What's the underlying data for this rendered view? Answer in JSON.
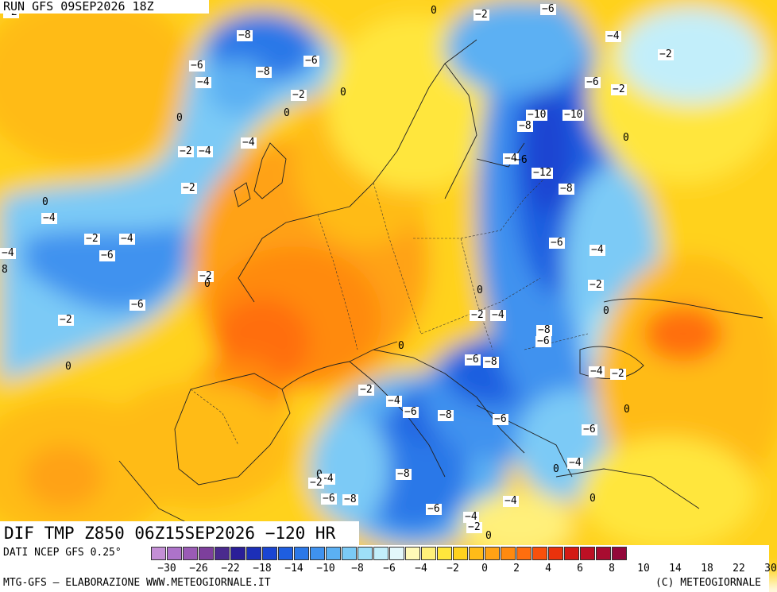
{
  "header": {
    "run_title": "RUN GFS 09SEP2026 18Z"
  },
  "panel": {
    "field_title": "DIF TMP Z850 06Z15SEP2026 −120 HR"
  },
  "footer": {
    "data_source": "DATI NCEP GFS 0.25°",
    "credit_left": "MTG-GFS – ELABORAZIONE WWW.METEOGIORNALE.IT",
    "credit_right": "(C) METEOGIORNALE"
  },
  "legend": {
    "colors": [
      "#c48fd6",
      "#ad73c9",
      "#9a5bb5",
      "#7d3f9c",
      "#4a2a8e",
      "#2a1e98",
      "#1c2fb8",
      "#1a45d2",
      "#1e5ee0",
      "#2b78e8",
      "#3f92ef",
      "#5bb0f3",
      "#7bcaf6",
      "#9edff8",
      "#c2eefa",
      "#e3f7fb",
      "#fff9b8",
      "#fff07a",
      "#ffe63c",
      "#ffd21e",
      "#ffbb18",
      "#ffa214",
      "#ff8a10",
      "#ff6e0e",
      "#f8500c",
      "#ea320c",
      "#d41a14",
      "#bd1024",
      "#a80c30",
      "#93083a"
    ],
    "ticks": [
      "−30",
      "−26",
      "−22",
      "−18",
      "−14",
      "−10",
      "−8",
      "−6",
      "−4",
      "−2",
      "0",
      "2",
      "4",
      "6",
      "8",
      "10",
      "14",
      "18",
      "22",
      "30"
    ]
  },
  "labels": [
    {
      "t": "−2"
    },
    {
      "t": "0"
    },
    {
      "t": "−2"
    },
    {
      "t": "−6"
    },
    {
      "t": "−4"
    },
    {
      "t": "−8"
    },
    {
      "t": "−6"
    },
    {
      "t": "−8"
    },
    {
      "t": "−4"
    },
    {
      "t": "−6"
    },
    {
      "t": "−2"
    },
    {
      "t": "0"
    },
    {
      "t": "−2"
    },
    {
      "t": "0"
    },
    {
      "t": "0"
    },
    {
      "t": "−6"
    },
    {
      "t": "−2"
    },
    {
      "t": "−10"
    },
    {
      "t": "−10"
    },
    {
      "t": "−8"
    },
    {
      "t": "0"
    },
    {
      "t": "−4"
    },
    {
      "t": "−2"
    },
    {
      "t": "−4"
    },
    {
      "t": "−4"
    },
    {
      "t": "−6"
    },
    {
      "t": "−12"
    },
    {
      "t": "−2"
    },
    {
      "t": "−8"
    },
    {
      "t": "0"
    },
    {
      "t": "−4"
    },
    {
      "t": "−2"
    },
    {
      "t": "−4"
    },
    {
      "t": "−4"
    },
    {
      "t": "−6"
    },
    {
      "t": "−6"
    },
    {
      "t": "8"
    },
    {
      "t": "−2"
    },
    {
      "t": "0"
    },
    {
      "t": "−4"
    },
    {
      "t": "−6"
    },
    {
      "t": "−2"
    },
    {
      "t": "−2"
    },
    {
      "t": "0"
    },
    {
      "t": "−2"
    },
    {
      "t": "−4"
    },
    {
      "t": "0"
    },
    {
      "t": "−8"
    },
    {
      "t": "−6"
    },
    {
      "t": "0"
    },
    {
      "t": "0"
    },
    {
      "t": "−6"
    },
    {
      "t": "−8"
    },
    {
      "t": "−4"
    },
    {
      "t": "−2"
    },
    {
      "t": "−2"
    },
    {
      "t": "−4"
    },
    {
      "t": "−6"
    },
    {
      "t": "−8"
    },
    {
      "t": "−6"
    },
    {
      "t": "0"
    },
    {
      "t": "−6"
    },
    {
      "t": "0"
    },
    {
      "t": "−4"
    },
    {
      "t": "−2"
    },
    {
      "t": "−8"
    },
    {
      "t": "0"
    },
    {
      "t": "−4"
    },
    {
      "t": "−6"
    },
    {
      "t": "−8"
    },
    {
      "t": "−6"
    },
    {
      "t": "−4"
    },
    {
      "t": "0"
    },
    {
      "t": "−4"
    },
    {
      "t": "−2"
    },
    {
      "t": "0"
    }
  ]
}
